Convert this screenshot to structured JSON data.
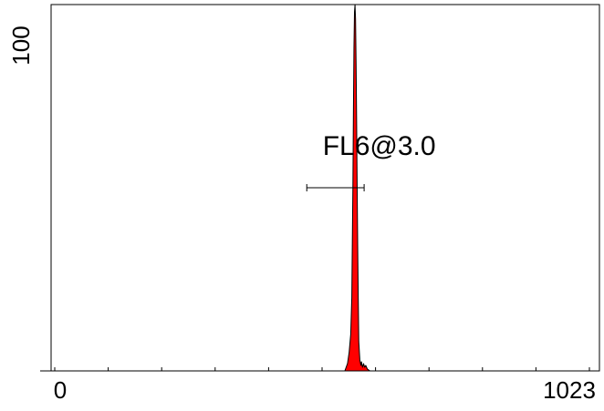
{
  "chart_data": {
    "type": "area",
    "title": "",
    "xlabel": "",
    "ylabel": "",
    "x_tick_labels": {
      "left": "0",
      "right": "1023"
    },
    "y_tick_labels": {
      "top": "100"
    },
    "xlim": [
      0,
      1023
    ],
    "ylim": [
      0,
      100
    ],
    "series": [
      {
        "fill_color": "#ff0000",
        "x": [
          0,
          548,
          553,
          556,
          559,
          561,
          562,
          563,
          564,
          565,
          566,
          567,
          568,
          569,
          570,
          571,
          572,
          573,
          574,
          576,
          578,
          579,
          581,
          583,
          585,
          587,
          590,
          595,
          1023
        ],
        "y": [
          0,
          0,
          2,
          5,
          10,
          20,
          35,
          50,
          70,
          88,
          98,
          102,
          96,
          84,
          68,
          50,
          34,
          20,
          8,
          3,
          1.5,
          2.5,
          1,
          2,
          1,
          1.5,
          0.5,
          0,
          0
        ]
      }
    ],
    "annotations": [
      {
        "text": "FL6@3.0",
        "marker_x_range": [
          477,
          584
        ],
        "marker_y": 50
      }
    ],
    "grid": false
  }
}
